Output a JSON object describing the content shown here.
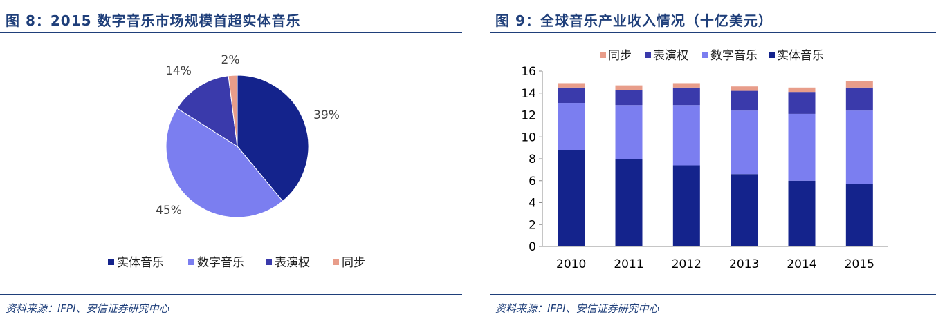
{
  "figure8": {
    "title": "图 8：2015 数字音乐市场规模首超实体音乐",
    "source": "资料来源：IFPI、安信证券研究中心"
  },
  "figure9": {
    "title": "图 9：全球音乐产业收入情况（十亿美元）",
    "source": "资料来源：IFPI、安信证券研究中心"
  },
  "colors": {
    "physical": "#14238c",
    "digital": "#7b7ef0",
    "performance": "#3a3aab",
    "sync": "#e89d8a",
    "title": "#1f3f7a"
  },
  "chart_data": [
    {
      "type": "pie",
      "slices": [
        {
          "label": "实体音乐",
          "value": 39,
          "display": "39%"
        },
        {
          "label": "数字音乐",
          "value": 45,
          "display": "45%"
        },
        {
          "label": "表演权",
          "value": 14,
          "display": "14%"
        },
        {
          "label": "同步",
          "value": 2,
          "display": "2%"
        }
      ],
      "legend": [
        "实体音乐",
        "数字音乐",
        "表演权",
        "同步"
      ],
      "legend_position": "bottom"
    },
    {
      "type": "bar",
      "stacked": true,
      "categories": [
        "2010",
        "2011",
        "2012",
        "2013",
        "2014",
        "2015"
      ],
      "series": [
        {
          "name": "实体音乐",
          "values": [
            8.8,
            8.0,
            7.4,
            6.6,
            6.0,
            5.7
          ]
        },
        {
          "name": "数字音乐",
          "values": [
            4.3,
            4.9,
            5.5,
            5.8,
            6.1,
            6.7
          ]
        },
        {
          "name": "表演权",
          "values": [
            1.4,
            1.4,
            1.6,
            1.8,
            2.0,
            2.1
          ]
        },
        {
          "name": "同步",
          "values": [
            0.4,
            0.4,
            0.4,
            0.4,
            0.4,
            0.6
          ]
        }
      ],
      "legend": [
        "同步",
        "表演权",
        "数字音乐",
        "实体音乐"
      ],
      "legend_position": "top",
      "ylim": [
        0,
        16
      ],
      "yticks": [
        0,
        2,
        4,
        6,
        8,
        10,
        12,
        14,
        16
      ],
      "xlabel": "",
      "ylabel": ""
    }
  ]
}
